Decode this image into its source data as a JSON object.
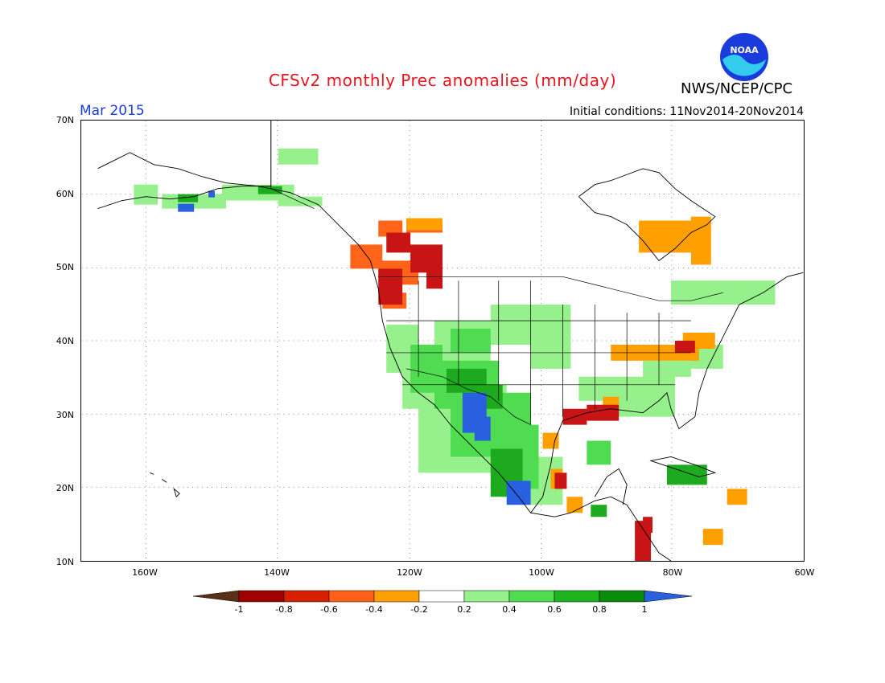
{
  "header": {
    "title": "CFSv2 monthly Prec anomalies (mm/day)",
    "agency": "NWS/NCEP/CPC",
    "month": "Mar 2015",
    "initial_conditions": "Initial conditions: 11Nov2014-20Nov2014"
  },
  "logo": {
    "text": "NOAA"
  },
  "map": {
    "lat_labels": [
      "70N",
      "60N",
      "50N",
      "40N",
      "30N",
      "20N",
      "10N"
    ],
    "lon_labels": [
      "160W",
      "140W",
      "120W",
      "100W",
      "80W",
      "60W"
    ]
  },
  "colorbar": {
    "labels": [
      "-1",
      "-0.8",
      "-0.6",
      "-0.4",
      "-0.2",
      "0.2",
      "0.4",
      "0.6",
      "0.8",
      "1"
    ],
    "colors": [
      "#5a3018",
      "#a00000",
      "#d82000",
      "#ff6018",
      "#ffa000",
      "#ffffff",
      "#96f08c",
      "#50dc50",
      "#1eb41e",
      "#0a8c0a",
      "#2860e0"
    ]
  },
  "anomaly_colors": {
    "strong_dry": "#c81414",
    "dry": "#ff6418",
    "slight_dry": "#ffa000",
    "slight_wet": "#96f08c",
    "wet": "#50dc50",
    "very_wet": "#1eaa1e",
    "extreme_wet": "#2860e0"
  }
}
